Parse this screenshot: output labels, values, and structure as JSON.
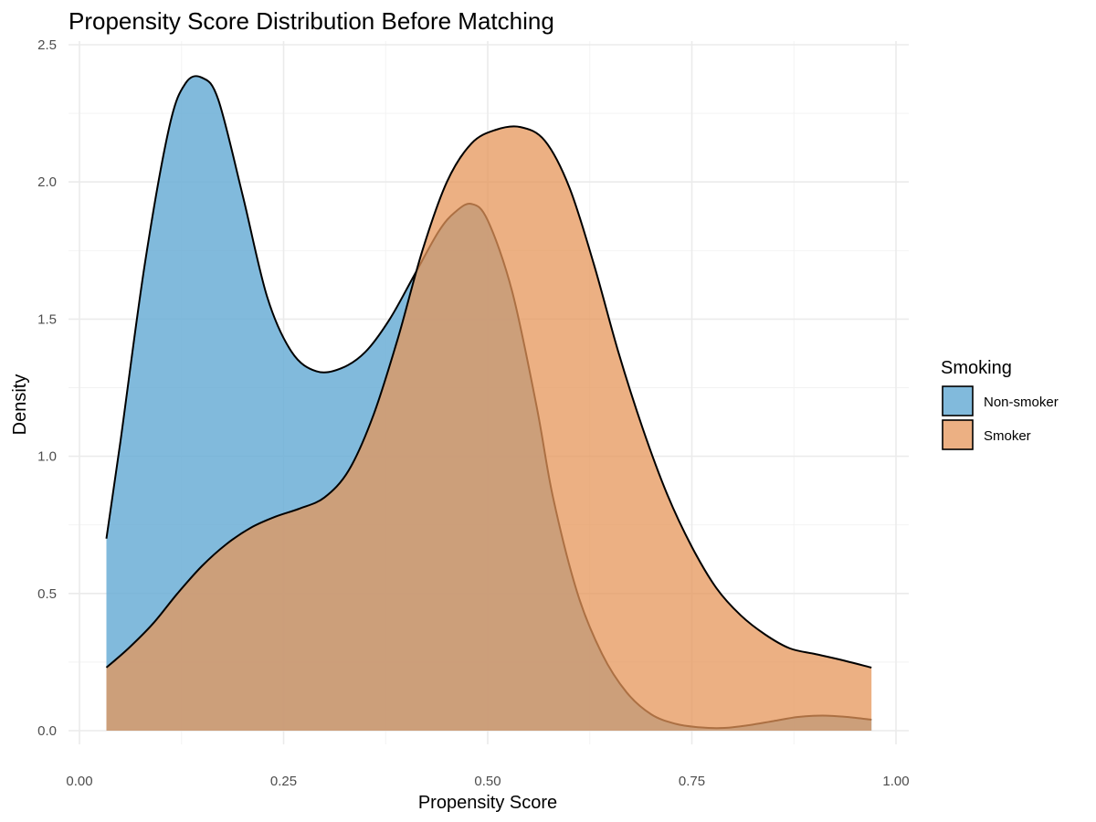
{
  "chart_data": {
    "type": "area",
    "title": "Propensity Score Distribution Before Matching",
    "xlabel": "Propensity Score",
    "ylabel": "Density",
    "xlim": [
      0.0,
      1.0
    ],
    "ylim": [
      0.0,
      2.5
    ],
    "x_ticks": [
      "0.00",
      "0.25",
      "0.50",
      "0.75",
      "1.00"
    ],
    "y_ticks": [
      "0.0",
      "0.5",
      "1.0",
      "1.5",
      "2.0",
      "2.5"
    ],
    "grid": true,
    "legend": {
      "title": "Smoking",
      "position": "right"
    },
    "series": [
      {
        "name": "Non-smoker",
        "color": "#6baed6",
        "x": [
          0.033,
          0.05,
          0.08,
          0.11,
          0.13,
          0.15,
          0.17,
          0.2,
          0.23,
          0.26,
          0.29,
          0.32,
          0.35,
          0.38,
          0.41,
          0.44,
          0.46,
          0.48,
          0.5,
          0.53,
          0.56,
          0.58,
          0.61,
          0.64,
          0.67,
          0.7,
          0.73,
          0.76,
          0.79,
          0.82,
          0.85,
          0.88,
          0.91,
          0.94,
          0.97
        ],
        "values": [
          0.7,
          1.05,
          1.7,
          2.2,
          2.36,
          2.38,
          2.3,
          1.95,
          1.58,
          1.38,
          1.31,
          1.32,
          1.38,
          1.5,
          1.66,
          1.82,
          1.89,
          1.92,
          1.86,
          1.6,
          1.18,
          0.85,
          0.5,
          0.28,
          0.14,
          0.06,
          0.025,
          0.012,
          0.01,
          0.02,
          0.035,
          0.05,
          0.055,
          0.05,
          0.04
        ]
      },
      {
        "name": "Smoker",
        "color": "#e6965a",
        "x": [
          0.033,
          0.06,
          0.09,
          0.12,
          0.15,
          0.18,
          0.21,
          0.24,
          0.27,
          0.3,
          0.33,
          0.36,
          0.39,
          0.42,
          0.45,
          0.48,
          0.51,
          0.54,
          0.57,
          0.6,
          0.63,
          0.66,
          0.69,
          0.72,
          0.75,
          0.78,
          0.81,
          0.84,
          0.87,
          0.9,
          0.93,
          0.97
        ],
        "values": [
          0.23,
          0.3,
          0.39,
          0.5,
          0.6,
          0.68,
          0.74,
          0.78,
          0.81,
          0.85,
          0.95,
          1.15,
          1.43,
          1.75,
          2.0,
          2.14,
          2.19,
          2.2,
          2.15,
          1.98,
          1.7,
          1.38,
          1.1,
          0.86,
          0.67,
          0.52,
          0.42,
          0.35,
          0.3,
          0.28,
          0.26,
          0.23
        ]
      }
    ]
  }
}
